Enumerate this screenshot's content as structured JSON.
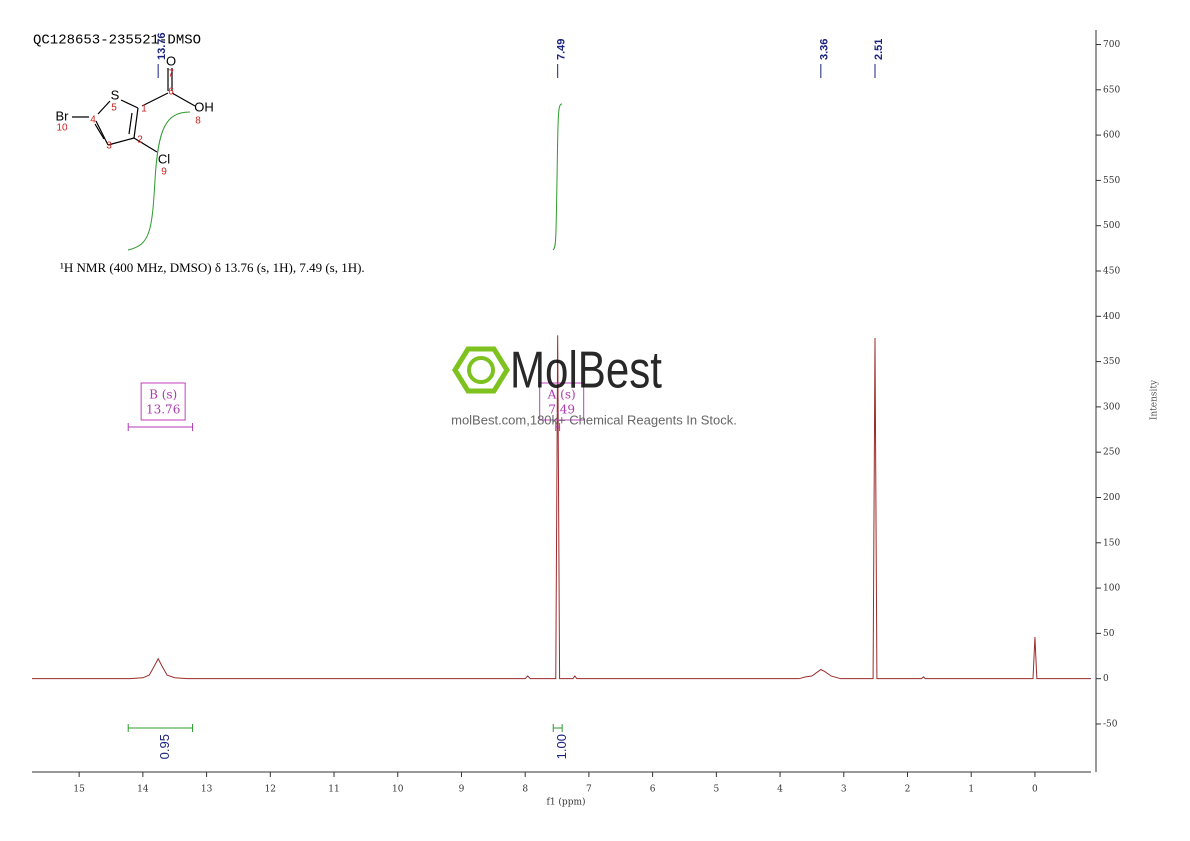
{
  "chart_data": {
    "type": "line",
    "title": "QC128653-235521-DMSO",
    "summary": "¹H NMR (400 MHz, DMSO) δ 13.76 (s, 1H), 7.49 (s, 1H).",
    "x_label": "f1 (ppm)",
    "y_label": "Intensity",
    "color": "#9b2b2b",
    "x": [
      15.74,
      14.2,
      14.0,
      13.9,
      13.82,
      13.76,
      13.7,
      13.62,
      13.5,
      13.3,
      8.0,
      7.96,
      7.92,
      7.52,
      7.49,
      7.46,
      7.25,
      7.22,
      7.19,
      3.7,
      3.6,
      3.5,
      3.42,
      3.36,
      3.3,
      3.2,
      3.05,
      2.54,
      2.51,
      2.48,
      1.78,
      1.75,
      1.72,
      0.03,
      0,
      -0.03,
      -0.88
    ],
    "values": [
      0,
      0,
      1,
      4,
      14,
      22,
      14,
      4,
      1,
      0,
      0,
      3,
      0,
      0,
      379,
      0,
      0,
      3,
      0,
      0,
      2,
      3,
      7,
      10,
      8,
      3,
      0,
      0,
      376,
      0,
      0,
      2,
      0,
      0,
      46,
      0,
      0
    ],
    "xlim": [
      15.74,
      -0.88
    ],
    "xticks": [
      15,
      14,
      13,
      12,
      11,
      10,
      9,
      8,
      7,
      6,
      5,
      4,
      3,
      2,
      1,
      0
    ],
    "ylim": [
      -103,
      716
    ],
    "yticks": [
      -50,
      0,
      50,
      100,
      150,
      200,
      250,
      300,
      350,
      400,
      450,
      500,
      550,
      600,
      650,
      700
    ],
    "peak_labels": [
      13.76,
      7.49,
      3.36,
      2.51
    ],
    "integrals": {
      "ranges": [
        [
          14.23,
          13.22
        ],
        [
          7.56,
          7.42
        ]
      ],
      "values": [
        0.95,
        1.0
      ],
      "value_labels": [
        "0.95",
        "1.00"
      ]
    },
    "multiplets": {
      "names": [
        "B (s)",
        "A (s)"
      ],
      "shifts": [
        13.76,
        7.49
      ],
      "ranges": [
        [
          14.23,
          13.22
        ],
        [
          7.52,
          7.46
        ]
      ]
    },
    "structure": {
      "atoms": [
        "S",
        "Br",
        "Cl",
        "O",
        "OH"
      ],
      "numbers": [
        1,
        2,
        3,
        4,
        5,
        6,
        7,
        8,
        9,
        10
      ]
    },
    "watermark": {
      "brand": "MolBest",
      "tagline": "molBest.com,180k+ Chemical Reagents In Stock."
    }
  }
}
